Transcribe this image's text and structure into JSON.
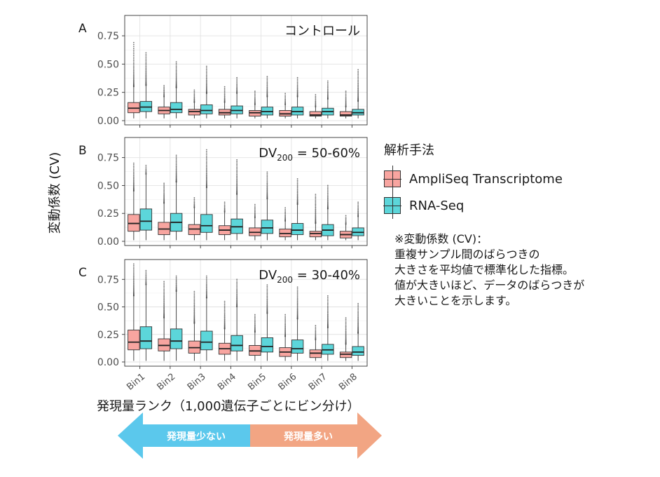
{
  "chart_data": {
    "type": "box",
    "y_axis_label": "変動係数 (CV)",
    "x_axis_label": "発現量ランク（1,000遺伝子ごとにビン分け）",
    "categories": [
      "Bin1",
      "Bin2",
      "Bin3",
      "Bin4",
      "Bin5",
      "Bin6",
      "Bin7",
      "Bin8"
    ],
    "yticks": [
      "0.00",
      "0.25",
      "0.50",
      "0.75"
    ],
    "ylim": [
      0,
      0.93
    ],
    "grid": true,
    "legend": {
      "title": "解析手法",
      "placement": "right",
      "series": [
        {
          "name": "AmpliSeq Transcriptome",
          "color": "#F8A5A0"
        },
        {
          "name": "RNA-Seq",
          "color": "#5CD6DA"
        }
      ]
    },
    "panels": [
      {
        "letter": "A",
        "label_main": "コントロール",
        "label_sub": "",
        "label_tail": "",
        "series": [
          {
            "name": "AmpliSeq Transcriptome",
            "boxes": [
              [
                0.02,
                0.07,
                0.11,
                0.16,
                0.3,
                0.69
              ],
              [
                0.02,
                0.06,
                0.09,
                0.12,
                0.21,
                0.31
              ],
              [
                0.02,
                0.05,
                0.08,
                0.1,
                0.16,
                0.27
              ],
              [
                0.02,
                0.05,
                0.07,
                0.1,
                0.16,
                0.3
              ],
              [
                0.02,
                0.04,
                0.07,
                0.09,
                0.14,
                0.26
              ],
              [
                0.02,
                0.04,
                0.06,
                0.09,
                0.14,
                0.24
              ],
              [
                0.02,
                0.04,
                0.05,
                0.08,
                0.12,
                0.23
              ],
              [
                0.02,
                0.04,
                0.05,
                0.08,
                0.12,
                0.26
              ]
            ]
          },
          {
            "name": "RNA-Seq",
            "boxes": [
              [
                0.02,
                0.08,
                0.12,
                0.17,
                0.31,
                0.6
              ],
              [
                0.02,
                0.07,
                0.1,
                0.16,
                0.29,
                0.52
              ],
              [
                0.02,
                0.06,
                0.09,
                0.14,
                0.24,
                0.48
              ],
              [
                0.02,
                0.06,
                0.09,
                0.13,
                0.24,
                0.38
              ],
              [
                0.02,
                0.05,
                0.08,
                0.12,
                0.21,
                0.39
              ],
              [
                0.02,
                0.05,
                0.08,
                0.12,
                0.21,
                0.38
              ],
              [
                0.02,
                0.05,
                0.08,
                0.11,
                0.19,
                0.35
              ],
              [
                0.02,
                0.05,
                0.07,
                0.1,
                0.17,
                0.45
              ]
            ]
          }
        ]
      },
      {
        "letter": "B",
        "label_main": "DV",
        "label_sub": "200",
        "label_tail": " = 50-60%",
        "series": [
          {
            "name": "AmpliSeq Transcriptome",
            "boxes": [
              [
                0.01,
                0.09,
                0.16,
                0.24,
                0.45,
                0.7
              ],
              [
                0.01,
                0.06,
                0.11,
                0.17,
                0.34,
                0.52
              ],
              [
                0.01,
                0.06,
                0.11,
                0.15,
                0.3,
                0.39
              ],
              [
                0.01,
                0.06,
                0.1,
                0.14,
                0.26,
                0.35
              ],
              [
                0.01,
                0.05,
                0.08,
                0.12,
                0.21,
                0.33
              ],
              [
                0.01,
                0.04,
                0.07,
                0.11,
                0.18,
                0.3
              ],
              [
                0.01,
                0.04,
                0.07,
                0.09,
                0.16,
                0.42
              ],
              [
                0.01,
                0.03,
                0.06,
                0.09,
                0.15,
                0.23
              ]
            ]
          },
          {
            "name": "RNA-Seq",
            "boxes": [
              [
                0.01,
                0.1,
                0.18,
                0.29,
                0.6,
                0.68
              ],
              [
                0.01,
                0.09,
                0.17,
                0.25,
                0.53,
                0.77
              ],
              [
                0.01,
                0.08,
                0.14,
                0.24,
                0.48,
                0.82
              ],
              [
                0.01,
                0.07,
                0.13,
                0.2,
                0.42,
                0.73
              ],
              [
                0.01,
                0.07,
                0.12,
                0.19,
                0.38,
                0.62
              ],
              [
                0.01,
                0.06,
                0.1,
                0.16,
                0.33,
                0.56
              ],
              [
                0.01,
                0.05,
                0.1,
                0.15,
                0.29,
                0.5
              ],
              [
                0.01,
                0.05,
                0.08,
                0.12,
                0.22,
                0.35
              ]
            ]
          }
        ]
      },
      {
        "letter": "C",
        "label_main": "DV",
        "label_sub": "200",
        "label_tail": " = 30-40%",
        "series": [
          {
            "name": "AmpliSeq Transcriptome",
            "boxes": [
              [
                0.01,
                0.11,
                0.18,
                0.29,
                0.6,
                0.89
              ],
              [
                0.01,
                0.1,
                0.15,
                0.21,
                0.4,
                0.73
              ],
              [
                0.01,
                0.08,
                0.13,
                0.19,
                0.35,
                0.64
              ],
              [
                0.01,
                0.07,
                0.12,
                0.17,
                0.3,
                0.55
              ],
              [
                0.01,
                0.06,
                0.1,
                0.15,
                0.27,
                0.43
              ],
              [
                0.01,
                0.05,
                0.09,
                0.13,
                0.23,
                0.43
              ],
              [
                0.01,
                0.04,
                0.08,
                0.11,
                0.2,
                0.33
              ],
              [
                0.01,
                0.04,
                0.07,
                0.09,
                0.16,
                0.4
              ]
            ]
          },
          {
            "name": "RNA-Seq",
            "boxes": [
              [
                0.01,
                0.12,
                0.19,
                0.32,
                0.7,
                0.83
              ],
              [
                0.01,
                0.12,
                0.19,
                0.3,
                0.64,
                0.78
              ],
              [
                0.01,
                0.11,
                0.18,
                0.28,
                0.58,
                0.78
              ],
              [
                0.01,
                0.1,
                0.15,
                0.24,
                0.5,
                0.75
              ],
              [
                0.01,
                0.09,
                0.14,
                0.22,
                0.44,
                0.7
              ],
              [
                0.01,
                0.08,
                0.12,
                0.2,
                0.39,
                0.68
              ],
              [
                0.01,
                0.07,
                0.11,
                0.16,
                0.31,
                0.6
              ],
              [
                0.01,
                0.06,
                0.09,
                0.14,
                0.26,
                0.53
              ]
            ]
          }
        ]
      }
    ]
  },
  "arrow": {
    "left_label": "発現量少ない",
    "right_label": "発現量多い",
    "left_color": "#5BC8EC",
    "right_color": "#F2A583"
  },
  "note": "※変動係数 (CV)：\n重複サンプル間のばらつきの\n大きさを平均値で標準化した指標。\n値が大きいほど、データのばらつきが\n大きいことを示します。"
}
